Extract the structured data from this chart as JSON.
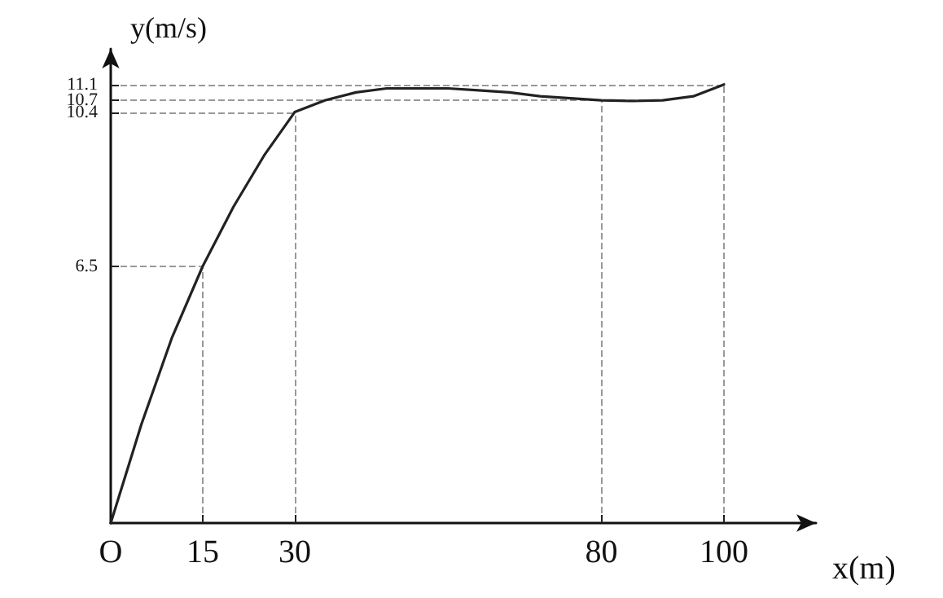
{
  "chart_data": {
    "type": "line",
    "xlabel": "x(m)",
    "ylabel": "y(m/s)",
    "x": [
      0,
      5,
      10,
      15,
      20,
      25,
      30,
      35,
      40,
      45,
      50,
      55,
      60,
      65,
      70,
      75,
      80,
      85,
      90,
      95,
      100
    ],
    "series": [
      {
        "color": "#222222",
        "values": [
          0,
          2.5,
          4.7,
          6.5,
          8.0,
          9.3,
          10.4,
          10.7,
          10.9,
          11.0,
          11.0,
          11.0,
          10.95,
          10.9,
          10.8,
          10.75,
          10.7,
          10.68,
          10.7,
          10.8,
          11.1
        ]
      }
    ],
    "xlim": [
      0,
      115
    ],
    "ylim": [
      0,
      12
    ],
    "xticks": [
      {
        "value": 0,
        "label": "O"
      },
      15,
      30,
      80,
      100
    ],
    "yticks": [
      6.5,
      10.4,
      10.7,
      11.1
    ],
    "ref_lines": [
      {
        "axis": "x",
        "value": 15
      },
      {
        "axis": "x",
        "value": 30
      },
      {
        "axis": "x",
        "value": 80
      },
      {
        "axis": "x",
        "value": 100
      },
      {
        "axis": "y",
        "value": 6.5
      },
      {
        "axis": "y",
        "value": 10.4
      },
      {
        "axis": "y",
        "value": 10.7
      },
      {
        "axis": "y",
        "value": 11.1
      }
    ],
    "grid": false,
    "marker": "none",
    "line_style": "solid"
  }
}
